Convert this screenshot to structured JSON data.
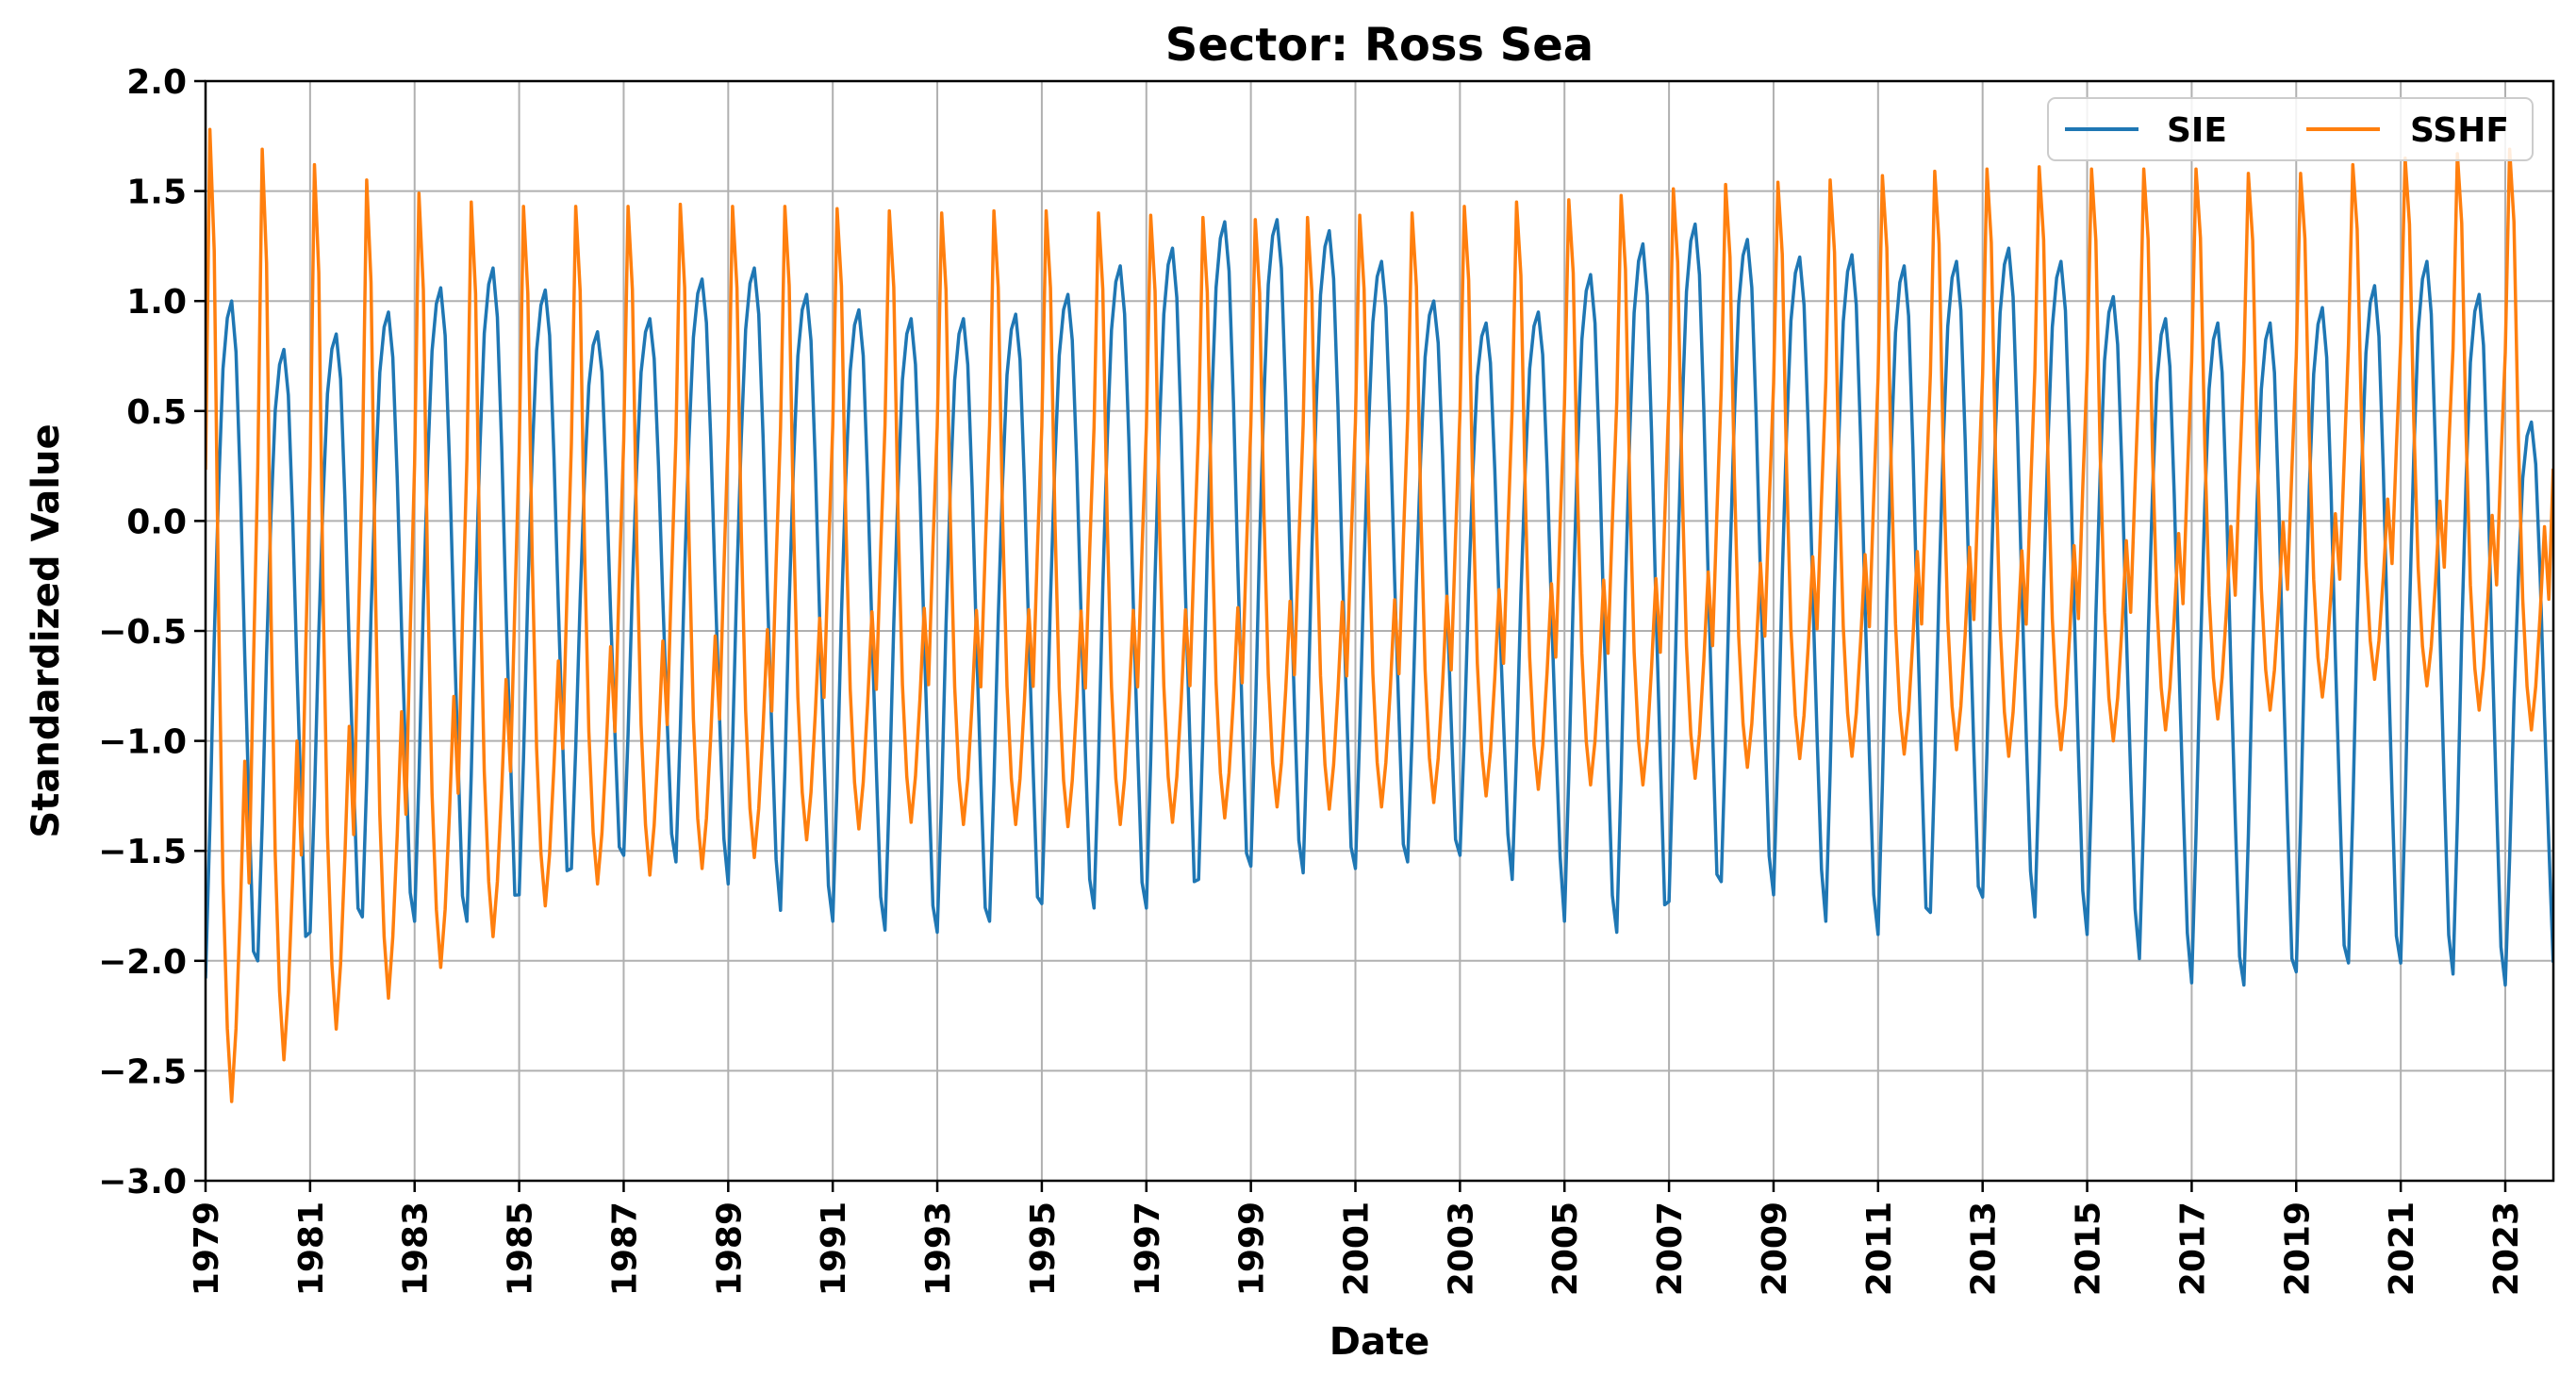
{
  "chart_data": {
    "type": "line",
    "title": "Sector: Ross Sea",
    "xlabel": "Date",
    "ylabel": "Standardized Value",
    "xlim": [
      1979.0,
      2023.92
    ],
    "ylim": [
      -3.0,
      2.0
    ],
    "grid": true,
    "legend_position": "top-right",
    "x_ticks": [
      "1979",
      "1981",
      "1983",
      "1985",
      "1987",
      "1989",
      "1991",
      "1993",
      "1995",
      "1997",
      "1999",
      "2001",
      "2003",
      "2005",
      "2007",
      "2009",
      "2011",
      "2013",
      "2015",
      "2017",
      "2019",
      "2021",
      "2023"
    ],
    "y_ticks": [
      "2.0",
      "1.5",
      "1.0",
      "0.5",
      "0.0",
      "−0.5",
      "−1.0",
      "−1.5",
      "−2.0",
      "−2.5",
      "−3.0"
    ],
    "start_year": 1979,
    "months_per_year": 12,
    "series": [
      {
        "name": "SIE",
        "color": "#1f77b4",
        "annual_max": [
          1.0,
          0.78,
          0.85,
          0.95,
          1.06,
          1.15,
          1.05,
          0.86,
          0.92,
          1.1,
          1.15,
          1.03,
          0.96,
          0.92,
          0.92,
          0.94,
          1.03,
          1.16,
          1.24,
          1.36,
          1.37,
          1.32,
          1.18,
          1.0,
          0.9,
          0.95,
          1.12,
          1.26,
          1.35,
          1.28,
          1.2,
          1.21,
          1.16,
          1.18,
          1.24,
          1.18,
          1.02,
          0.92,
          0.9,
          0.9,
          0.97,
          1.07,
          1.18,
          1.03,
          0.45
        ],
        "annual_min": [
          -2.08,
          -2.0,
          -1.87,
          -1.8,
          -1.82,
          -1.82,
          -1.7,
          -1.58,
          -1.52,
          -1.55,
          -1.65,
          -1.77,
          -1.82,
          -1.86,
          -1.87,
          -1.82,
          -1.74,
          -1.76,
          -1.76,
          -1.63,
          -1.57,
          -1.6,
          -1.58,
          -1.55,
          -1.52,
          -1.63,
          -1.82,
          -1.87,
          -1.73,
          -1.64,
          -1.7,
          -1.82,
          -1.88,
          -1.78,
          -1.71,
          -1.8,
          -1.88,
          -1.99,
          -2.1,
          -2.11,
          -2.05,
          -2.01,
          -2.01,
          -2.06,
          -2.11
        ]
      },
      {
        "name": "SSHF",
        "color": "#ff7f0e",
        "annual_max": [
          1.78,
          1.69,
          1.62,
          1.55,
          1.49,
          1.45,
          1.43,
          1.43,
          1.43,
          1.44,
          1.43,
          1.43,
          1.42,
          1.41,
          1.4,
          1.41,
          1.41,
          1.4,
          1.39,
          1.38,
          1.37,
          1.38,
          1.39,
          1.4,
          1.43,
          1.45,
          1.46,
          1.48,
          1.51,
          1.53,
          1.54,
          1.55,
          1.57,
          1.59,
          1.6,
          1.61,
          1.6,
          1.6,
          1.6,
          1.58,
          1.58,
          1.62,
          1.65,
          1.67,
          1.69
        ],
        "annual_min": [
          -2.64,
          -2.45,
          -2.31,
          -2.17,
          -2.03,
          -1.89,
          -1.75,
          -1.65,
          -1.61,
          -1.58,
          -1.53,
          -1.45,
          -1.4,
          -1.37,
          -1.38,
          -1.38,
          -1.39,
          -1.38,
          -1.37,
          -1.35,
          -1.3,
          -1.31,
          -1.3,
          -1.28,
          -1.25,
          -1.22,
          -1.2,
          -1.2,
          -1.17,
          -1.12,
          -1.08,
          -1.07,
          -1.06,
          -1.04,
          -1.07,
          -1.04,
          -1.0,
          -0.95,
          -0.9,
          -0.86,
          -0.8,
          -0.72,
          -0.75,
          -0.86,
          -0.95
        ]
      }
    ]
  }
}
